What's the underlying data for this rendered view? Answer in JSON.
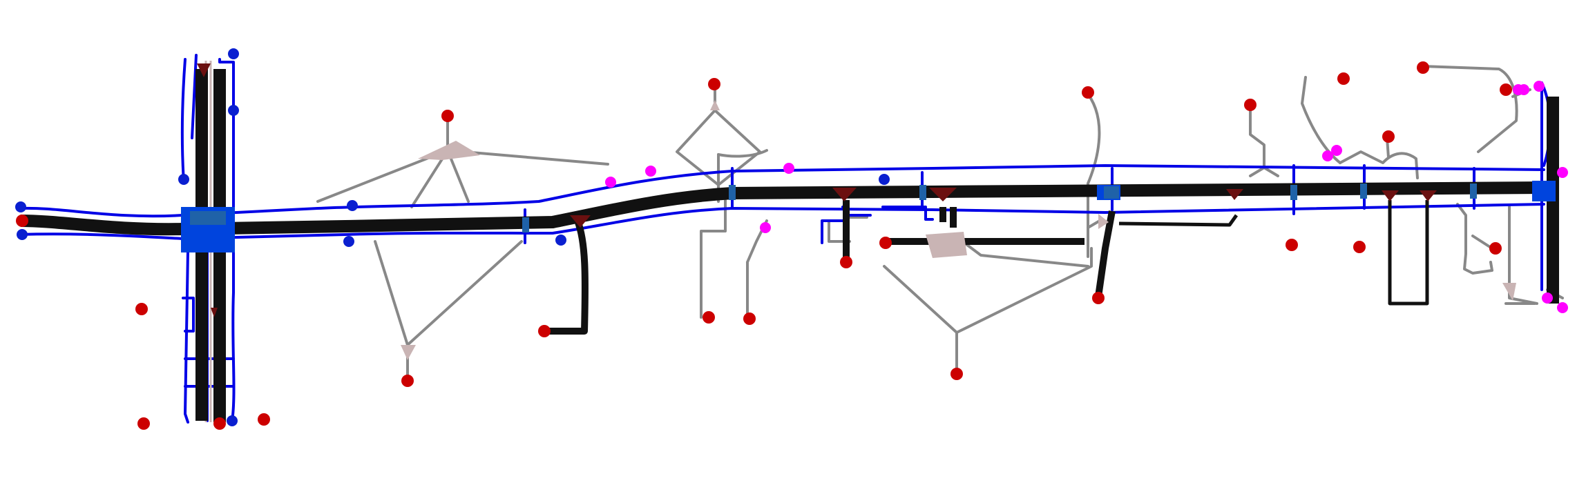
{
  "map": {
    "type": "road-network",
    "colors": {
      "background": "#ffffff",
      "road_major": "#111111",
      "road_sidewalk": "#0000e6",
      "road_minor": "#888888",
      "junction_plaza": "#c9b4b4",
      "junction_blue": "#0044dd",
      "junction_teal": "#1f62a8",
      "node_red": "#cc0000",
      "node_blue": "#0a1fd0",
      "node_magenta": "#ff00ff",
      "node_darkred": "#6b1010"
    },
    "legend": []
  }
}
